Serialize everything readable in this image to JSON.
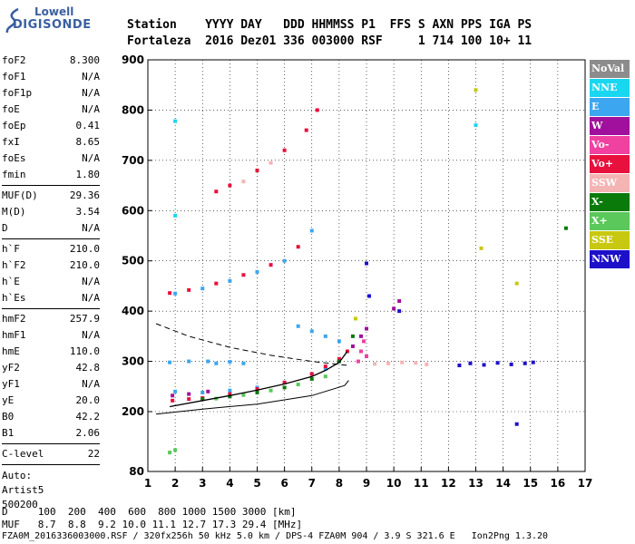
{
  "logo": {
    "line1": "Lowell",
    "line2": "DIGISONDE",
    "color": "#3a5fa0"
  },
  "header": {
    "line1": "Station    YYYY DAY   DDD HHMMSS P1  FFS S AXN PPS IGA PS",
    "line2": "Fortaleza  2016 Dez01 336 003000 RSF     1 714 100 10+ 11"
  },
  "params": {
    "group1": [
      {
        "k": "foF2",
        "v": "8.300"
      },
      {
        "k": "foF1",
        "v": "N/A"
      },
      {
        "k": "foF1p",
        "v": "N/A"
      },
      {
        "k": "foE",
        "v": "N/A"
      },
      {
        "k": "foEp",
        "v": "0.41"
      },
      {
        "k": "fxI",
        "v": "8.65"
      },
      {
        "k": "foEs",
        "v": "N/A"
      },
      {
        "k": "fmin",
        "v": "1.80"
      }
    ],
    "group2": [
      {
        "k": "MUF(D)",
        "v": "29.36"
      },
      {
        "k": "M(D)",
        "v": "3.54"
      },
      {
        "k": "D",
        "v": "N/A"
      }
    ],
    "group3": [
      {
        "k": "h`F",
        "v": "210.0"
      },
      {
        "k": "h`F2",
        "v": "210.0"
      },
      {
        "k": "h`E",
        "v": "N/A"
      },
      {
        "k": "h`Es",
        "v": "N/A"
      }
    ],
    "group4": [
      {
        "k": "hmF2",
        "v": "257.9"
      },
      {
        "k": "hmF1",
        "v": "N/A"
      },
      {
        "k": "hmE",
        "v": "110.0"
      },
      {
        "k": "yF2",
        "v": "42.8"
      },
      {
        "k": "yF1",
        "v": "N/A"
      },
      {
        "k": "yE",
        "v": "20.0"
      },
      {
        "k": "B0",
        "v": "42.2"
      },
      {
        "k": "B1",
        "v": "2.06"
      }
    ],
    "group5": [
      {
        "k": "C-level",
        "v": "22"
      }
    ],
    "auto_label": "Auto:",
    "auto_name": "Artist5",
    "auto_version": "500200"
  },
  "bottom": {
    "d_row": "D     100  200  400  600  800 1000 1500 3000 [km]",
    "muf_row": "MUF   8.7  8.8  9.2 10.0 11.1 12.7 17.3 29.4 [MHz]",
    "footer": "FZA0M_2016336003000.RSF / 320fx256h 50 kHz 5.0 km / DPS-4 FZA0M 904 / 3.9 S 321.6 E   Ion2Png 1.3.20"
  },
  "legend": [
    {
      "label": "NoVal",
      "color": "#8c8c8c"
    },
    {
      "label": "NNE",
      "color": "#19d7f0"
    },
    {
      "label": "E",
      "color": "#3ca6f0"
    },
    {
      "label": "W",
      "color": "#a0109c"
    },
    {
      "label": "Vo-",
      "color": "#f040a0"
    },
    {
      "label": "Vo+",
      "color": "#e8103c"
    },
    {
      "label": "SSW",
      "color": "#f4b4b4"
    },
    {
      "label": "X-",
      "color": "#0a7a0a"
    },
    {
      "label": "X+",
      "color": "#5ac85a"
    },
    {
      "label": "SSE",
      "color": "#c8c810"
    },
    {
      "label": "NNW",
      "color": "#1c10c8"
    }
  ],
  "chart_data": {
    "type": "scatter",
    "xlabel": "",
    "ylabel": "",
    "xlim": [
      1,
      17
    ],
    "ylim": [
      80,
      900
    ],
    "x_ticks": [
      1,
      2,
      3,
      4,
      5,
      6,
      7,
      8,
      9,
      10,
      11,
      12,
      13,
      14,
      15,
      16,
      17
    ],
    "y_ticks": [
      80,
      200,
      300,
      400,
      500,
      600,
      700,
      800,
      900
    ],
    "profile": {
      "freq": [
        1.8,
        3,
        4,
        5,
        6,
        7,
        7.5,
        8,
        8.3
      ],
      "height": [
        210,
        222,
        232,
        243,
        255,
        270,
        282,
        298,
        320
      ]
    },
    "profile_extension_lower": {
      "freq": [
        1.3,
        3,
        5,
        7,
        8.2,
        8.35
      ],
      "height": [
        195,
        205,
        215,
        232,
        252,
        262
      ]
    },
    "dashed_topside": {
      "freq": [
        1.3,
        2.5,
        4,
        5.5,
        7,
        8.3
      ],
      "height": [
        375,
        350,
        328,
        312,
        300,
        292
      ]
    },
    "series": [
      {
        "name": "NNE",
        "points": [
          [
            2.0,
            778
          ],
          [
            2.0,
            590
          ],
          [
            13.0,
            770
          ]
        ]
      },
      {
        "name": "E",
        "points": [
          [
            1.8,
            298
          ],
          [
            2.5,
            300
          ],
          [
            3.2,
            300
          ],
          [
            3.5,
            296
          ],
          [
            4.0,
            299
          ],
          [
            4.5,
            296
          ],
          [
            2.0,
            240
          ],
          [
            3.0,
            238
          ],
          [
            4.0,
            242
          ],
          [
            5.0,
            248
          ],
          [
            6.0,
            258
          ],
          [
            7.0,
            275
          ],
          [
            7.5,
            285
          ],
          [
            2.0,
            435
          ],
          [
            3.0,
            445
          ],
          [
            4.0,
            460
          ],
          [
            5.0,
            478
          ],
          [
            6.0,
            500
          ],
          [
            7.0,
            560
          ],
          [
            6.5,
            370
          ],
          [
            7.0,
            360
          ],
          [
            7.5,
            350
          ],
          [
            8.0,
            340
          ]
        ]
      },
      {
        "name": "W",
        "points": [
          [
            1.9,
            232
          ],
          [
            2.5,
            235
          ],
          [
            3.2,
            240
          ],
          [
            8.5,
            330
          ],
          [
            8.8,
            350
          ],
          [
            9.0,
            365
          ],
          [
            10.0,
            405
          ],
          [
            10.2,
            420
          ]
        ]
      },
      {
        "name": "Vo-",
        "points": [
          [
            8.7,
            300
          ],
          [
            8.8,
            320
          ],
          [
            8.9,
            340
          ],
          [
            9.0,
            310
          ]
        ]
      },
      {
        "name": "Vo+",
        "points": [
          [
            1.9,
            222
          ],
          [
            2.5,
            225
          ],
          [
            3.0,
            227
          ],
          [
            4.0,
            235
          ],
          [
            5.0,
            245
          ],
          [
            6.0,
            258
          ],
          [
            7.0,
            275
          ],
          [
            7.5,
            290
          ],
          [
            8.0,
            305
          ],
          [
            8.3,
            320
          ],
          [
            1.8,
            436
          ],
          [
            2.5,
            442
          ],
          [
            3.5,
            455
          ],
          [
            4.5,
            472
          ],
          [
            5.5,
            492
          ],
          [
            6.5,
            528
          ],
          [
            3.5,
            638
          ],
          [
            4.0,
            650
          ],
          [
            5.0,
            680
          ],
          [
            6.0,
            720
          ],
          [
            6.8,
            760
          ],
          [
            7.2,
            800
          ]
        ]
      },
      {
        "name": "SSW",
        "points": [
          [
            9.3,
            295
          ],
          [
            9.8,
            296
          ],
          [
            10.3,
            298
          ],
          [
            10.8,
            297
          ],
          [
            11.2,
            294
          ],
          [
            4.5,
            658
          ],
          [
            5.5,
            695
          ]
        ]
      },
      {
        "name": "X-",
        "points": [
          [
            3.0,
            225
          ],
          [
            4.0,
            230
          ],
          [
            5.0,
            238
          ],
          [
            6.0,
            248
          ],
          [
            7.0,
            265
          ],
          [
            8.0,
            300
          ],
          [
            8.5,
            350
          ],
          [
            16.3,
            565
          ]
        ]
      },
      {
        "name": "X+",
        "points": [
          [
            3.5,
            226
          ],
          [
            4.5,
            233
          ],
          [
            5.5,
            242
          ],
          [
            6.5,
            254
          ],
          [
            7.5,
            270
          ],
          [
            1.8,
            118
          ],
          [
            2.0,
            123
          ]
        ]
      },
      {
        "name": "SSE",
        "points": [
          [
            13.0,
            840
          ],
          [
            14.5,
            455
          ],
          [
            13.2,
            525
          ],
          [
            8.6,
            385
          ]
        ]
      },
      {
        "name": "NNW",
        "points": [
          [
            12.4,
            292
          ],
          [
            12.8,
            296
          ],
          [
            13.3,
            293
          ],
          [
            13.8,
            297
          ],
          [
            14.3,
            294
          ],
          [
            14.8,
            296
          ],
          [
            15.1,
            298
          ],
          [
            9.0,
            495
          ],
          [
            9.1,
            430
          ],
          [
            10.2,
            400
          ],
          [
            14.5,
            175
          ]
        ]
      }
    ]
  }
}
